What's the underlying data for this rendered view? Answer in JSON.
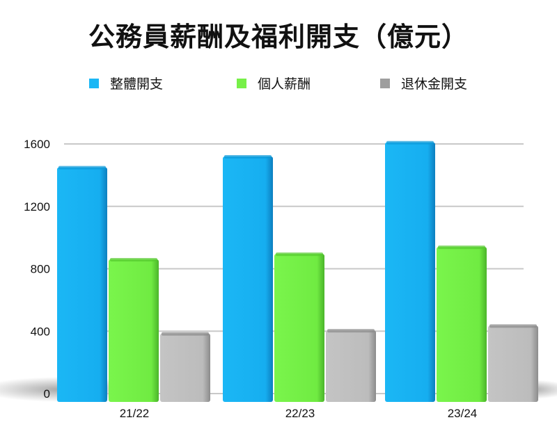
{
  "chart_data": {
    "type": "bar",
    "title": "公務員薪酬及福利開支（億元）",
    "categories": [
      "21/22",
      "22/23",
      "23/24"
    ],
    "series": [
      {
        "name": "整體開支",
        "values": [
          1450,
          1520,
          1610
        ],
        "color": "#1bb7f5"
      },
      {
        "name": "個人薪酬",
        "values": [
          860,
          895,
          940
        ],
        "color": "#77f048"
      },
      {
        "name": "退休金開支",
        "values": [
          385,
          405,
          435
        ],
        "color": "#bdbdbd"
      }
    ],
    "yticks": [
      0,
      400,
      800,
      1200,
      1600
    ],
    "ylim": [
      0,
      1600
    ],
    "grid": true,
    "legend_position": "top"
  }
}
